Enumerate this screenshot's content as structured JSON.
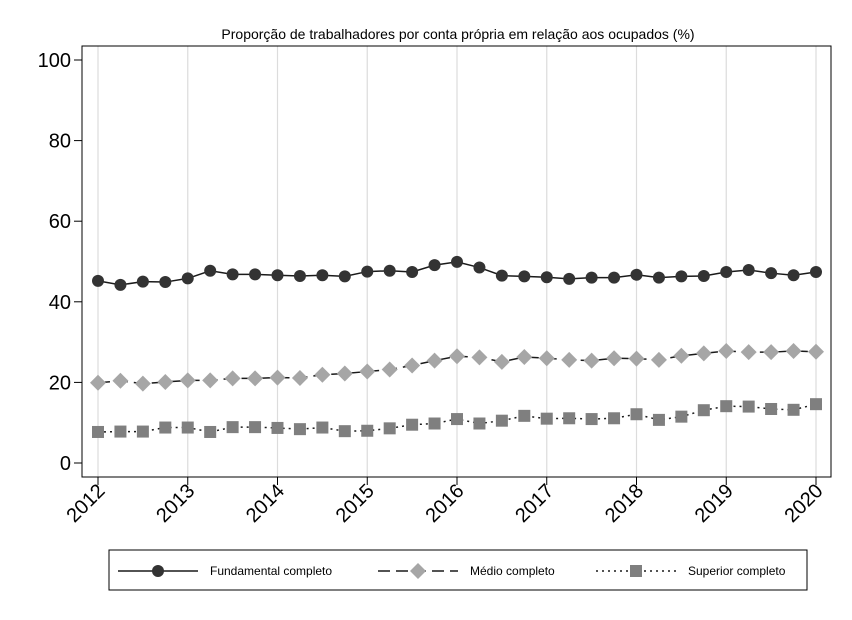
{
  "chart_data": {
    "type": "line",
    "title": "Proporção de trabalhadores por conta própria em relação aos ocupados (%)",
    "xlabel": "",
    "ylabel": "",
    "ylim": [
      0,
      100
    ],
    "yticks": [
      0,
      20,
      40,
      60,
      80,
      100
    ],
    "xlim": [
      2012,
      2020
    ],
    "xticks": [
      "2012",
      "2013",
      "2014",
      "2015",
      "2016",
      "2017",
      "2018",
      "2019",
      "2020"
    ],
    "grid": "vertical",
    "legend_position": "bottom",
    "x": [
      2012,
      2012.25,
      2012.5,
      2012.75,
      2013,
      2013.25,
      2013.5,
      2013.75,
      2014,
      2014.25,
      2014.5,
      2014.75,
      2015,
      2015.25,
      2015.5,
      2015.75,
      2016,
      2016.25,
      2016.5,
      2016.75,
      2017,
      2017.25,
      2017.5,
      2017.75,
      2018,
      2018.25,
      2018.5,
      2018.75,
      2019,
      2019.25,
      2019.5,
      2019.75,
      2020
    ],
    "series": [
      {
        "name": "Fundamental completo",
        "color": "#333333",
        "marker": "circle",
        "line_style": "solid",
        "values": [
          45.2,
          44.2,
          45.0,
          44.9,
          45.8,
          47.7,
          46.8,
          46.8,
          46.6,
          46.4,
          46.6,
          46.3,
          47.5,
          47.7,
          47.4,
          49.1,
          49.9,
          48.5,
          46.5,
          46.3,
          46.1,
          45.7,
          46.0,
          46.0,
          46.7,
          46.0,
          46.3,
          46.4,
          47.4,
          47.9,
          47.1,
          46.6,
          47.4
        ]
      },
      {
        "name": "Médio completo",
        "color": "#a6a6a6",
        "marker": "diamond",
        "line_style": "dashed",
        "values": [
          19.9,
          20.4,
          19.7,
          20.1,
          20.5,
          20.5,
          21.0,
          21.0,
          21.2,
          21.1,
          21.9,
          22.2,
          22.7,
          23.2,
          24.2,
          25.4,
          26.5,
          26.2,
          25.1,
          26.3,
          26.0,
          25.6,
          25.4,
          26.0,
          25.9,
          25.6,
          26.6,
          27.2,
          27.8,
          27.5,
          27.5,
          27.8,
          27.6
        ]
      },
      {
        "name": "Superior completo",
        "color": "#7f7f7f",
        "marker": "square",
        "line_style": "dotted",
        "values": [
          7.7,
          7.8,
          7.8,
          8.8,
          8.8,
          7.7,
          8.9,
          8.9,
          8.7,
          8.4,
          8.8,
          7.9,
          8.0,
          8.6,
          9.5,
          9.8,
          10.9,
          9.8,
          10.5,
          11.7,
          11.0,
          11.1,
          10.9,
          11.1,
          12.1,
          10.7,
          11.5,
          13.1,
          14.1,
          14.0,
          13.4,
          13.2,
          14.6
        ]
      }
    ]
  }
}
